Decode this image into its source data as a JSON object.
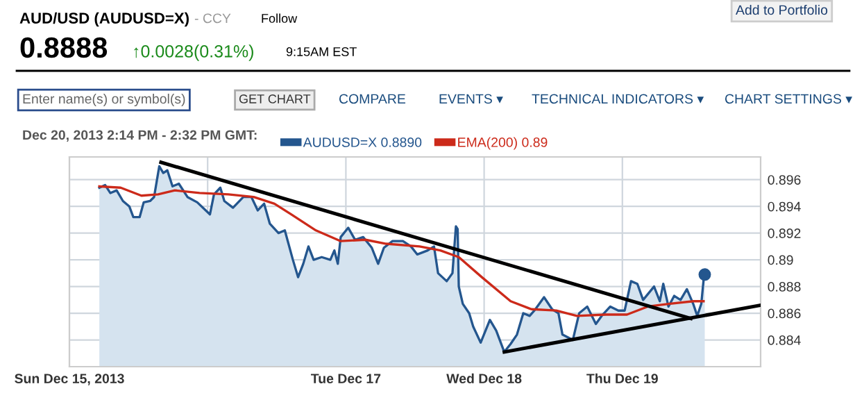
{
  "chart_data": {
    "type": "area",
    "title": "AUD/USD (AUDUSD=X)",
    "subtitle": "0.8888",
    "annotations": [
      "- CCY",
      "Follow",
      "↑0.0028(0.31%)",
      "9:15AM EST",
      "Add to Portfolio",
      "Enter name(s) or symbol(s)",
      "GET CHART",
      "COMPARE",
      "EVENTS ▾",
      "TECHNICAL INDICATORS ▾",
      "CHART SETTINGS ▾"
    ],
    "legend_title": "Dec 20, 2013 2:14 PM - 2:32 PM GMT:",
    "legend": "top left",
    "grid": true,
    "line_style": "solid",
    "xlim": [
      "2013-12-15",
      "2013-12-20"
    ],
    "xticks": [
      {
        "value": "2013-12-15",
        "label": "Sun Dec 15, 2013"
      },
      {
        "value": "2013-12-16",
        "label": null
      },
      {
        "value": "2013-12-17",
        "label": "Tue Dec 17"
      },
      {
        "value": "2013-12-18",
        "label": "Wed Dec 18"
      },
      {
        "value": "2013-12-19",
        "label": "Thu Dec 19"
      }
    ],
    "ylim": [
      0.882,
      0.8977
    ],
    "yticks": [
      0.884,
      0.886,
      0.888,
      0.89,
      0.892,
      0.894,
      0.896
    ],
    "series": [
      {
        "name": "AUDUSD=X 0.8890",
        "color": "#24568e",
        "x": [
          "2013-12-15T05:12",
          "2013-12-15T06:12",
          "2013-12-15T07:06",
          "2013-12-15T08:12",
          "2013-12-15T09:18",
          "2013-12-15T10:24",
          "2013-12-15T11:06",
          "2013-12-15T12:12",
          "2013-12-15T12:54",
          "2013-12-15T14:00",
          "2013-12-15T14:42",
          "2013-12-15T15:36",
          "2013-12-15T16:18",
          "2013-12-15T17:00",
          "2013-12-15T17:54",
          "2013-12-15T19:00",
          "2013-12-15T20:30",
          "2013-12-15T22:12",
          "2013-12-16T00:24",
          "2013-12-16T01:06",
          "2013-12-16T02:12",
          "2013-12-16T02:54",
          "2013-12-16T04:24",
          "2013-12-16T06:12",
          "2013-12-16T07:36",
          "2013-12-16T08:42",
          "2013-12-16T09:48",
          "2013-12-16T10:48",
          "2013-12-16T12:18",
          "2013-12-16T13:24",
          "2013-12-16T14:48",
          "2013-12-16T15:42",
          "2013-12-16T16:36",
          "2013-12-16T17:30",
          "2013-12-16T18:24",
          "2013-12-16T19:48",
          "2013-12-16T21:18",
          "2013-12-16T22:00",
          "2013-12-16T22:36",
          "2013-12-16T23:06",
          "2013-12-17T00:24",
          "2013-12-17T01:36",
          "2013-12-17T03:00",
          "2013-12-17T04:30",
          "2013-12-17T05:36",
          "2013-12-17T06:36",
          "2013-12-17T08:06",
          "2013-12-17T09:54",
          "2013-12-17T11:18",
          "2013-12-17T12:24",
          "2013-12-17T14:12",
          "2013-12-17T15:18",
          "2013-12-17T16:00",
          "2013-12-17T17:30",
          "2013-12-17T18:30",
          "2013-12-17T19:06",
          "2013-12-17T19:24",
          "2013-12-17T19:36",
          "2013-12-17T20:18",
          "2013-12-17T21:24",
          "2013-12-17T22:06",
          "2013-12-17T23:24",
          "2013-12-18T01:00",
          "2013-12-18T02:06",
          "2013-12-18T03:30",
          "2013-12-18T04:36",
          "2013-12-18T05:42",
          "2013-12-18T06:48",
          "2013-12-18T07:54",
          "2013-12-18T08:54",
          "2013-12-18T10:24",
          "2013-12-18T11:48",
          "2013-12-18T12:54",
          "2013-12-18T13:36",
          "2013-12-18T15:24",
          "2013-12-18T16:30",
          "2013-12-18T17:54",
          "2013-12-18T19:24",
          "2013-12-18T20:24",
          "2013-12-18T21:54",
          "2013-12-18T23:18",
          "2013-12-19T00:24",
          "2013-12-19T01:30",
          "2013-12-19T02:36",
          "2013-12-19T03:36",
          "2013-12-19T05:30",
          "2013-12-19T06:30",
          "2013-12-19T07:06",
          "2013-12-19T08:00",
          "2013-12-19T09:00",
          "2013-12-19T10:06",
          "2013-12-19T11:12",
          "2013-12-19T12:18",
          "2013-12-19T13:00",
          "2013-12-19T13:42",
          "2013-12-19T14:06",
          "2013-12-19T14:18"
        ],
        "values": [
          0.8954,
          0.8956,
          0.895,
          0.8952,
          0.8944,
          0.894,
          0.8932,
          0.8932,
          0.8943,
          0.8944,
          0.8947,
          0.897,
          0.8965,
          0.8967,
          0.8955,
          0.8957,
          0.8947,
          0.8943,
          0.8934,
          0.8949,
          0.8954,
          0.8944,
          0.8939,
          0.8947,
          0.8947,
          0.8937,
          0.8942,
          0.8927,
          0.892,
          0.8922,
          0.89,
          0.8887,
          0.8897,
          0.891,
          0.89,
          0.8902,
          0.89,
          0.8907,
          0.8897,
          0.8917,
          0.8924,
          0.8915,
          0.8917,
          0.8909,
          0.8897,
          0.8909,
          0.8914,
          0.8914,
          0.891,
          0.8904,
          0.8907,
          0.891,
          0.889,
          0.8884,
          0.889,
          0.8925,
          0.8923,
          0.888,
          0.8867,
          0.886,
          0.885,
          0.8838,
          0.8855,
          0.8847,
          0.8831,
          0.8837,
          0.8844,
          0.886,
          0.8858,
          0.8863,
          0.8872,
          0.8863,
          0.886,
          0.8844,
          0.884,
          0.886,
          0.8865,
          0.8852,
          0.8858,
          0.8865,
          0.8862,
          0.8862,
          0.8884,
          0.8882,
          0.887,
          0.888,
          0.8869,
          0.8882,
          0.8865,
          0.8873,
          0.887,
          0.8878,
          0.8867,
          0.8858,
          0.8867,
          0.8885,
          0.8889
        ]
      },
      {
        "name": "EMA(200) 0.89",
        "type": "line",
        "color": "#cc2a1a",
        "x": [
          "2013-12-15T05:12",
          "2013-12-15T08:54",
          "2013-12-15T12:30",
          "2013-12-15T15:24",
          "2013-12-15T18:18",
          "2013-12-15T22:36",
          "2013-12-16T03:36",
          "2013-12-16T08:00",
          "2013-12-16T11:36",
          "2013-12-16T14:30",
          "2013-12-16T18:48",
          "2013-12-16T23:06",
          "2013-12-17T03:24",
          "2013-12-17T07:00",
          "2013-12-17T12:48",
          "2013-12-17T16:24",
          "2013-12-17T19:36",
          "2013-12-17T23:36",
          "2013-12-18T04:36",
          "2013-12-18T08:12",
          "2013-12-18T12:30",
          "2013-12-18T16:06",
          "2013-12-18T21:12",
          "2013-12-19T00:48",
          "2013-12-19T04:24",
          "2013-12-19T08:00",
          "2013-12-19T12:18",
          "2013-12-19T14:06"
        ],
        "values": [
          0.8955,
          0.8954,
          0.8948,
          0.8949,
          0.8952,
          0.895,
          0.8949,
          0.8947,
          0.8942,
          0.8934,
          0.8922,
          0.8914,
          0.8915,
          0.8912,
          0.891,
          0.8907,
          0.8902,
          0.8887,
          0.8869,
          0.8863,
          0.8862,
          0.8858,
          0.8859,
          0.8859,
          0.8865,
          0.8867,
          0.8869,
          0.8869
        ]
      },
      {
        "type": "line",
        "color": "#000000",
        "x": [
          "2013-12-15T15:54",
          "2013-12-19T11:54"
        ],
        "values": [
          0.8973,
          0.8856
        ]
      },
      {
        "type": "line",
        "color": "#000000",
        "x": [
          "2013-12-18T03:30",
          "2013-12-20T00:00"
        ],
        "values": [
          0.8831,
          0.8866
        ]
      },
      {
        "type": "scatter",
        "color": "#24568e",
        "x": [
          "2013-12-19T14:18"
        ],
        "values": [
          0.8889
        ]
      }
    ]
  }
}
